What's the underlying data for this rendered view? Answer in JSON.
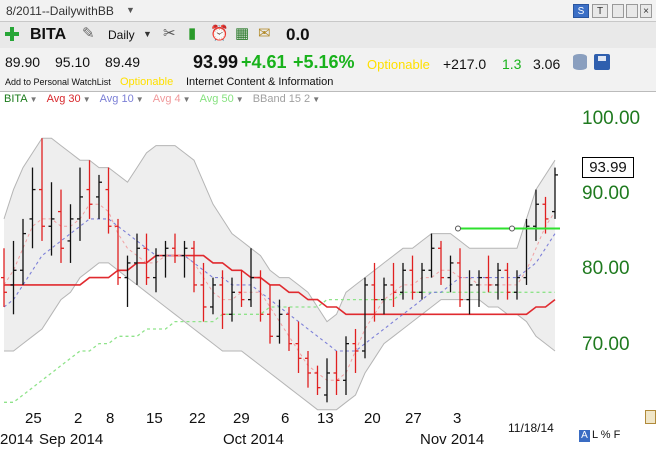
{
  "window": {
    "title": "8/2011--DailywithBB",
    "controls": {
      "s": "S",
      "t": "T"
    }
  },
  "toolbar": {
    "symbol": "BITA",
    "period": "Daily",
    "counter": "0.0",
    "icons": [
      "add-icon",
      "pin-icon",
      "tools-icon",
      "bar-chart-icon",
      "alarm-clock-icon",
      "calculator-icon",
      "note-icon"
    ]
  },
  "quote": {
    "open": "89.90",
    "high": "95.10",
    "low": "89.49",
    "last": "93.99",
    "change": "+4.61",
    "change_pct": "+5.16%",
    "optionable": "Optionable",
    "value_1": "+217.0",
    "value_2": "1.3",
    "value_3": "3.06",
    "watchlist_link": "Add to Personal WatchList",
    "optionable_small": "Optionable",
    "industry": "Internet Content & Information"
  },
  "legend": [
    {
      "label": "BITA",
      "color": "#1a7a1a"
    },
    {
      "label": "Avg 30",
      "color": "#d8282d"
    },
    {
      "label": "Avg 10",
      "color": "#7b7fd6"
    },
    {
      "label": "Avg 4",
      "color": "#f0999b"
    },
    {
      "label": "Avg 50",
      "color": "#86e27f"
    },
    {
      "label": "BBand 15 2",
      "color": "#a0a0a0"
    }
  ],
  "chart_data": {
    "type": "candlestick",
    "price_axis": [
      "100.00",
      "90.00",
      "80.00",
      "70.00"
    ],
    "ylim": [
      62.5,
      103.8
    ],
    "last_price": "93.99",
    "x_ticks": [
      "25",
      "2",
      "8",
      "15",
      "22",
      "29",
      "6",
      "13",
      "20",
      "27",
      "3"
    ],
    "months": [
      "2014",
      "Sep 2014",
      "Oct 2014",
      "Nov 2014"
    ],
    "date_stamp": "11/18/14",
    "horizontal_line_price": 86.7,
    "colors": {
      "up": "#111111",
      "down": "#e02020",
      "avg30": "#e02a2f",
      "avg10": "#7d80d8",
      "avg4": "#f0a0a2",
      "avg50": "#8fe38a",
      "bband": "#b5b5b5",
      "band_fill": "#eeeeee",
      "gv_line": "#2ee02e"
    },
    "bars": [
      {
        "o": 80,
        "h": 84,
        "l": 76,
        "c": 78
      },
      {
        "o": 79,
        "h": 85,
        "l": 75,
        "c": 81
      },
      {
        "o": 81,
        "h": 88,
        "l": 79,
        "c": 86
      },
      {
        "o": 88,
        "h": 95,
        "l": 84,
        "c": 92
      },
      {
        "o": 92,
        "h": 99,
        "l": 85,
        "c": 87
      },
      {
        "o": 87,
        "h": 93,
        "l": 83,
        "c": 88
      },
      {
        "o": 89,
        "h": 92,
        "l": 82,
        "c": 84
      },
      {
        "o": 85,
        "h": 90,
        "l": 82,
        "c": 88
      },
      {
        "o": 88,
        "h": 95,
        "l": 85,
        "c": 91
      },
      {
        "o": 92,
        "h": 96,
        "l": 88,
        "c": 90
      },
      {
        "o": 91,
        "h": 94,
        "l": 88,
        "c": 93
      },
      {
        "o": 92,
        "h": 95,
        "l": 86,
        "c": 87
      },
      {
        "o": 87,
        "h": 88,
        "l": 79,
        "c": 80
      },
      {
        "o": 80,
        "h": 83,
        "l": 76,
        "c": 82
      },
      {
        "o": 82,
        "h": 86,
        "l": 79,
        "c": 84
      },
      {
        "o": 84,
        "h": 86,
        "l": 79,
        "c": 80
      },
      {
        "o": 80,
        "h": 84,
        "l": 78,
        "c": 83
      },
      {
        "o": 83,
        "h": 85,
        "l": 80,
        "c": 84
      },
      {
        "o": 84,
        "h": 86,
        "l": 82,
        "c": 83
      },
      {
        "o": 83,
        "h": 85,
        "l": 80,
        "c": 84
      },
      {
        "o": 84,
        "h": 85,
        "l": 78,
        "c": 79
      },
      {
        "o": 79,
        "h": 82,
        "l": 74,
        "c": 76
      },
      {
        "o": 76,
        "h": 80,
        "l": 75,
        "c": 79
      },
      {
        "o": 79,
        "h": 81,
        "l": 73,
        "c": 75
      },
      {
        "o": 75,
        "h": 80,
        "l": 74,
        "c": 78
      },
      {
        "o": 78,
        "h": 81,
        "l": 76,
        "c": 77
      },
      {
        "o": 77,
        "h": 84,
        "l": 76,
        "c": 80
      },
      {
        "o": 80,
        "h": 81,
        "l": 74,
        "c": 75
      },
      {
        "o": 75,
        "h": 79,
        "l": 71,
        "c": 72
      },
      {
        "o": 72,
        "h": 77,
        "l": 71,
        "c": 75
      },
      {
        "o": 75,
        "h": 76,
        "l": 70,
        "c": 71
      },
      {
        "o": 71,
        "h": 74,
        "l": 67,
        "c": 69
      },
      {
        "o": 69,
        "h": 70,
        "l": 65,
        "c": 67
      },
      {
        "o": 67,
        "h": 68,
        "l": 64,
        "c": 65
      },
      {
        "o": 64,
        "h": 69,
        "l": 63,
        "c": 67
      },
      {
        "o": 67,
        "h": 70,
        "l": 64,
        "c": 66
      },
      {
        "o": 66,
        "h": 72,
        "l": 64,
        "c": 71
      },
      {
        "o": 71,
        "h": 73,
        "l": 67,
        "c": 70
      },
      {
        "o": 70,
        "h": 80,
        "l": 69,
        "c": 79
      },
      {
        "o": 79,
        "h": 82,
        "l": 74,
        "c": 77
      },
      {
        "o": 77,
        "h": 80,
        "l": 75,
        "c": 79
      },
      {
        "o": 79,
        "h": 82,
        "l": 76,
        "c": 78
      },
      {
        "o": 78,
        "h": 82,
        "l": 77,
        "c": 81
      },
      {
        "o": 81,
        "h": 83,
        "l": 77,
        "c": 78
      },
      {
        "o": 78,
        "h": 82,
        "l": 77,
        "c": 81
      },
      {
        "o": 81,
        "h": 86,
        "l": 80,
        "c": 84
      },
      {
        "o": 84,
        "h": 85,
        "l": 79,
        "c": 80
      },
      {
        "o": 80,
        "h": 83,
        "l": 78,
        "c": 82
      },
      {
        "o": 82,
        "h": 84,
        "l": 76,
        "c": 77
      },
      {
        "o": 77,
        "h": 81,
        "l": 75,
        "c": 79
      },
      {
        "o": 79,
        "h": 81,
        "l": 76,
        "c": 80
      },
      {
        "o": 80,
        "h": 83,
        "l": 78,
        "c": 79
      },
      {
        "o": 79,
        "h": 82,
        "l": 77,
        "c": 81
      },
      {
        "o": 81,
        "h": 82,
        "l": 77,
        "c": 78
      },
      {
        "o": 78,
        "h": 81,
        "l": 77,
        "c": 80
      },
      {
        "o": 80,
        "h": 88,
        "l": 79,
        "c": 87
      },
      {
        "o": 87,
        "h": 92,
        "l": 85,
        "c": 90
      },
      {
        "o": 90,
        "h": 91,
        "l": 86,
        "c": 88
      },
      {
        "o": 89,
        "h": 95,
        "l": 88,
        "c": 94
      }
    ],
    "bb_upper": [
      88,
      92,
      95,
      97,
      99,
      99,
      98,
      97,
      96,
      96,
      95,
      95,
      94,
      93,
      95,
      97,
      98,
      98,
      98,
      97,
      96,
      93,
      90,
      88,
      86,
      85,
      84,
      83,
      81,
      80,
      80,
      79,
      78,
      76,
      74,
      75,
      78,
      79,
      80,
      81,
      82,
      83,
      84,
      84,
      85,
      86,
      86,
      86,
      85,
      84,
      84,
      84,
      84,
      84,
      84,
      88,
      92,
      94,
      96
    ],
    "bb_lower": [
      70,
      70,
      71,
      72,
      73,
      75,
      77,
      78,
      80,
      81,
      82,
      82,
      81,
      80,
      79,
      78,
      77,
      76,
      75,
      74,
      73,
      72,
      71,
      70,
      70,
      70,
      69,
      68,
      67,
      66,
      65,
      64,
      63,
      62,
      62,
      62,
      63,
      64,
      67,
      69,
      71,
      72,
      73,
      74,
      75,
      76,
      77,
      77,
      77,
      77,
      77,
      76,
      76,
      75,
      75,
      74,
      72,
      71,
      70
    ],
    "avg10": [
      76,
      77,
      79,
      81,
      83,
      84,
      85,
      86,
      87,
      88,
      88,
      88,
      87,
      86,
      85,
      84,
      83,
      83,
      83,
      83,
      82,
      81,
      80,
      80,
      79,
      79,
      79,
      78,
      77,
      76,
      75,
      74,
      73,
      72,
      71,
      70,
      70,
      70,
      71,
      72,
      73,
      74,
      75,
      76,
      77,
      78,
      78,
      79,
      80,
      80,
      80,
      80,
      80,
      80,
      80,
      81,
      82,
      84,
      86
    ],
    "avg30": [
      79,
      79,
      79,
      79,
      79,
      79,
      79,
      79,
      79,
      80,
      80,
      80,
      81,
      81,
      82,
      82,
      83,
      83,
      83,
      83,
      83,
      83,
      82,
      82,
      81,
      81,
      80,
      80,
      79,
      79,
      78,
      78,
      77,
      77,
      76,
      76,
      75,
      75,
      75,
      75,
      75,
      75,
      75,
      75,
      75,
      75,
      75,
      75,
      75,
      75,
      75,
      75,
      75,
      75,
      75,
      75,
      76,
      76,
      77
    ],
    "avg50": [
      63,
      63,
      64,
      65,
      66,
      67,
      68,
      69,
      70,
      70,
      71,
      71,
      72,
      72,
      72,
      73,
      73,
      73,
      74,
      74,
      74,
      74,
      74,
      75,
      75,
      75,
      75,
      75,
      76,
      76,
      76,
      76,
      76,
      76,
      77,
      77,
      77,
      77,
      77,
      77,
      77,
      77,
      78,
      78,
      78,
      78,
      78,
      78,
      78,
      78,
      78,
      78,
      78,
      78,
      78,
      78,
      78,
      78,
      78
    ],
    "avg4": [
      79,
      81,
      84,
      87,
      88,
      88,
      87,
      87,
      88,
      90,
      90,
      89,
      86,
      84,
      83,
      82,
      82,
      83,
      83,
      83,
      82,
      80,
      78,
      77,
      77,
      78,
      78,
      78,
      76,
      74,
      72,
      70,
      68,
      67,
      66,
      66,
      67,
      70,
      73,
      75,
      77,
      78,
      79,
      79,
      80,
      80,
      81,
      81,
      80,
      80,
      79,
      79,
      79,
      79,
      79,
      81,
      84,
      87,
      89
    ]
  }
}
